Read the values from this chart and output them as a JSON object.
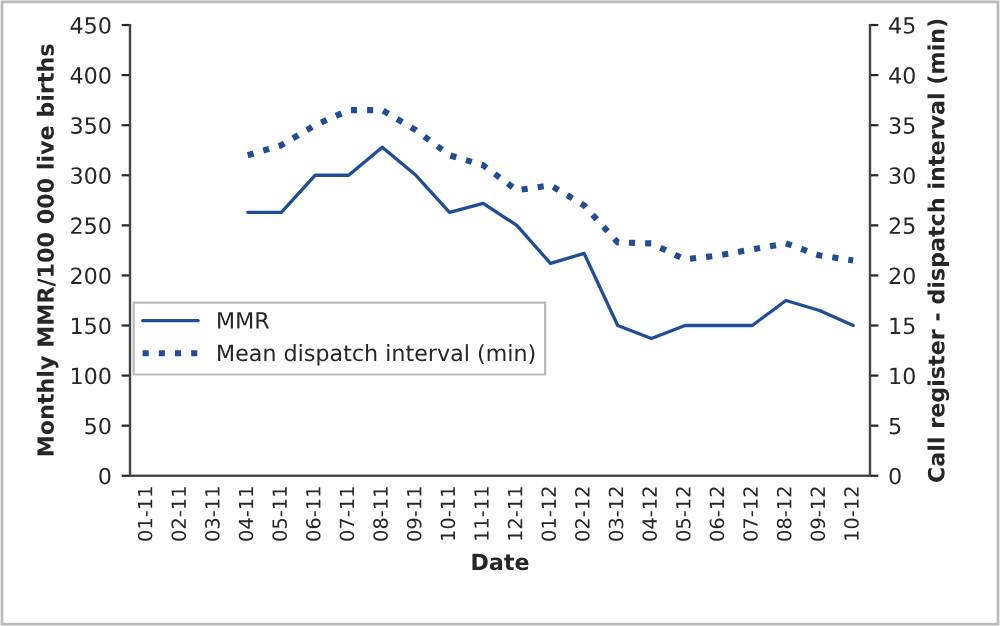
{
  "chart_data": {
    "type": "line",
    "xlabel": "Date",
    "ylabel": "Monthly MMR/100 000 live births",
    "y2label": "Call register - dispatch interval (min)",
    "categories": [
      "01-11",
      "02-11",
      "03-11",
      "04-11",
      "05-11",
      "06-11",
      "07-11",
      "08-11",
      "09-11",
      "10-11",
      "11-11",
      "12-11",
      "01-12",
      "02-12",
      "03-12",
      "04-12",
      "05-12",
      "06-12",
      "07-12",
      "08-12",
      "09-12",
      "10-12"
    ],
    "series": [
      {
        "name": "MMR",
        "color": "#1f4e96",
        "line_style": "solid",
        "values": [
          null,
          null,
          null,
          263,
          263,
          300,
          300,
          328,
          300,
          263,
          272,
          250,
          212,
          222,
          150,
          137,
          150,
          150,
          150,
          175,
          165,
          150
        ]
      },
      {
        "name": "Mean dispatch interval (min)",
        "color": "#1f4e96",
        "line_style": "dotted",
        "axis": "y2",
        "values": [
          null,
          null,
          null,
          32,
          33,
          35,
          36.5,
          36.5,
          34.5,
          32,
          31,
          28.5,
          29,
          27,
          23.3,
          23.2,
          21.6,
          22,
          22.6,
          23.2,
          22,
          21.5
        ]
      }
    ],
    "ylim": [
      0,
      450
    ],
    "yticks": [
      0,
      50,
      100,
      150,
      200,
      250,
      300,
      350,
      400,
      450
    ],
    "y2lim": [
      0,
      45
    ],
    "y2ticks": [
      0,
      5,
      10,
      15,
      20,
      25,
      30,
      35,
      40,
      45
    ],
    "grid": false,
    "legend": "bottom left",
    "marker": "none"
  }
}
